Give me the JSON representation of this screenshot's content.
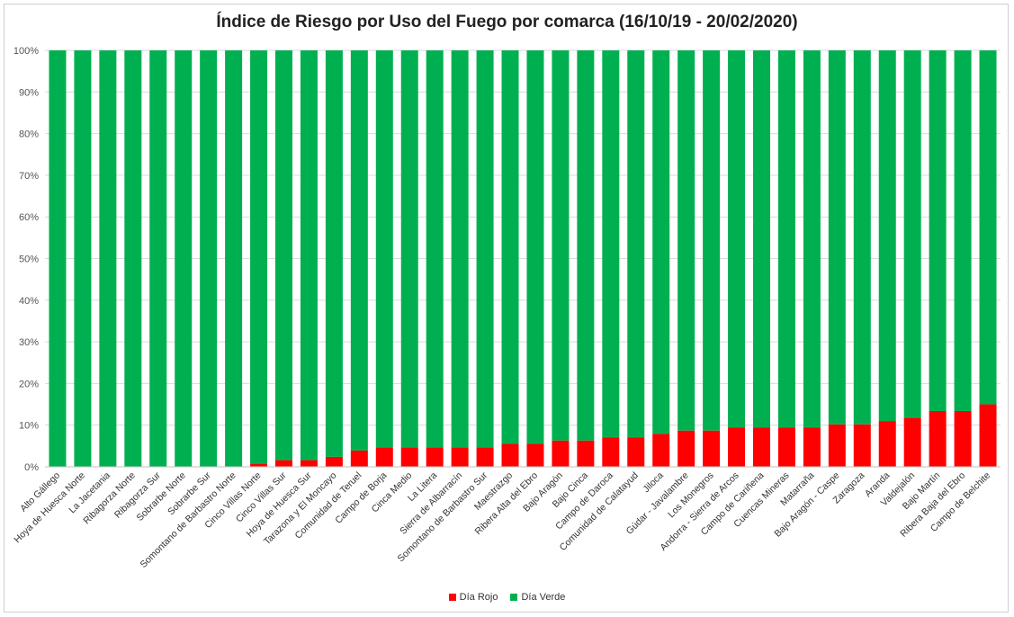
{
  "chart_data": {
    "type": "bar",
    "stacked": true,
    "percent_stacked": true,
    "title": "Índice de Riesgo por Uso del Fuego por comarca (16/10/19 - 20/02/2020)",
    "xlabel": "",
    "ylabel": "",
    "ylim": [
      0,
      100
    ],
    "y_ticks": [
      "0%",
      "10%",
      "20%",
      "30%",
      "40%",
      "50%",
      "60%",
      "70%",
      "80%",
      "90%",
      "100%"
    ],
    "grid": true,
    "legend_position": "bottom",
    "categories": [
      "Alto Gállego",
      "Hoya de Huesca Norte",
      "La Jacetania",
      "Ribagorza Norte",
      "Ribagorza Sur",
      "Sobrarbe Norte",
      "Sobrarbe Sur",
      "Somontano de Barbastro Norte",
      "Cinco Villas Norte",
      "Cinco Villas Sur",
      "Hoya de Huesca Sur",
      "Tarazona y El Moncayo",
      "Comunidad de Teruel",
      "Campo de Borja",
      "Cinca Medio",
      "La Litera",
      "Sierra de Albarracín",
      "Somontano de Barbastro Sur",
      "Maestrazgo",
      "Ribera Alta del Ebro",
      "Bajo Aragón",
      "Bajo Cinca",
      "Campo de Daroca",
      "Comunidad de Calatayud",
      "Jiloca",
      "Gúdar - Javalambre",
      "Los Monegros",
      "Andorra - Sierra de Arcos",
      "Campo de Cariñena",
      "Cuencas Mineras",
      "Matarraña",
      "Bajo Aragón - Caspe",
      "Zaragoza",
      "Aranda",
      "Valdejalón",
      "Bajo Martín",
      "Ribera Baja del Ebro",
      "Campo de Belchite"
    ],
    "series": [
      {
        "name": "Día Rojo",
        "color": "#ff0000",
        "values": [
          0,
          0,
          0,
          0,
          0,
          0,
          0,
          0,
          0.8,
          1.6,
          1.6,
          2.4,
          3.9,
          4.7,
          4.7,
          4.7,
          4.7,
          4.7,
          5.5,
          5.5,
          6.3,
          6.3,
          7.1,
          7.1,
          7.9,
          8.7,
          8.7,
          9.4,
          9.4,
          9.4,
          9.4,
          10.2,
          10.2,
          11.0,
          11.8,
          13.4,
          13.4,
          15.0
        ]
      },
      {
        "name": "Día Verde",
        "color": "#00b050",
        "values": [
          100,
          100,
          100,
          100,
          100,
          100,
          100,
          100,
          99.2,
          98.4,
          98.4,
          97.6,
          96.1,
          95.3,
          95.3,
          95.3,
          95.3,
          95.3,
          94.5,
          94.5,
          93.7,
          93.7,
          92.9,
          92.9,
          92.1,
          91.3,
          91.3,
          90.6,
          90.6,
          90.6,
          90.6,
          89.8,
          89.8,
          89.0,
          88.2,
          86.6,
          86.6,
          85.0
        ]
      }
    ]
  }
}
